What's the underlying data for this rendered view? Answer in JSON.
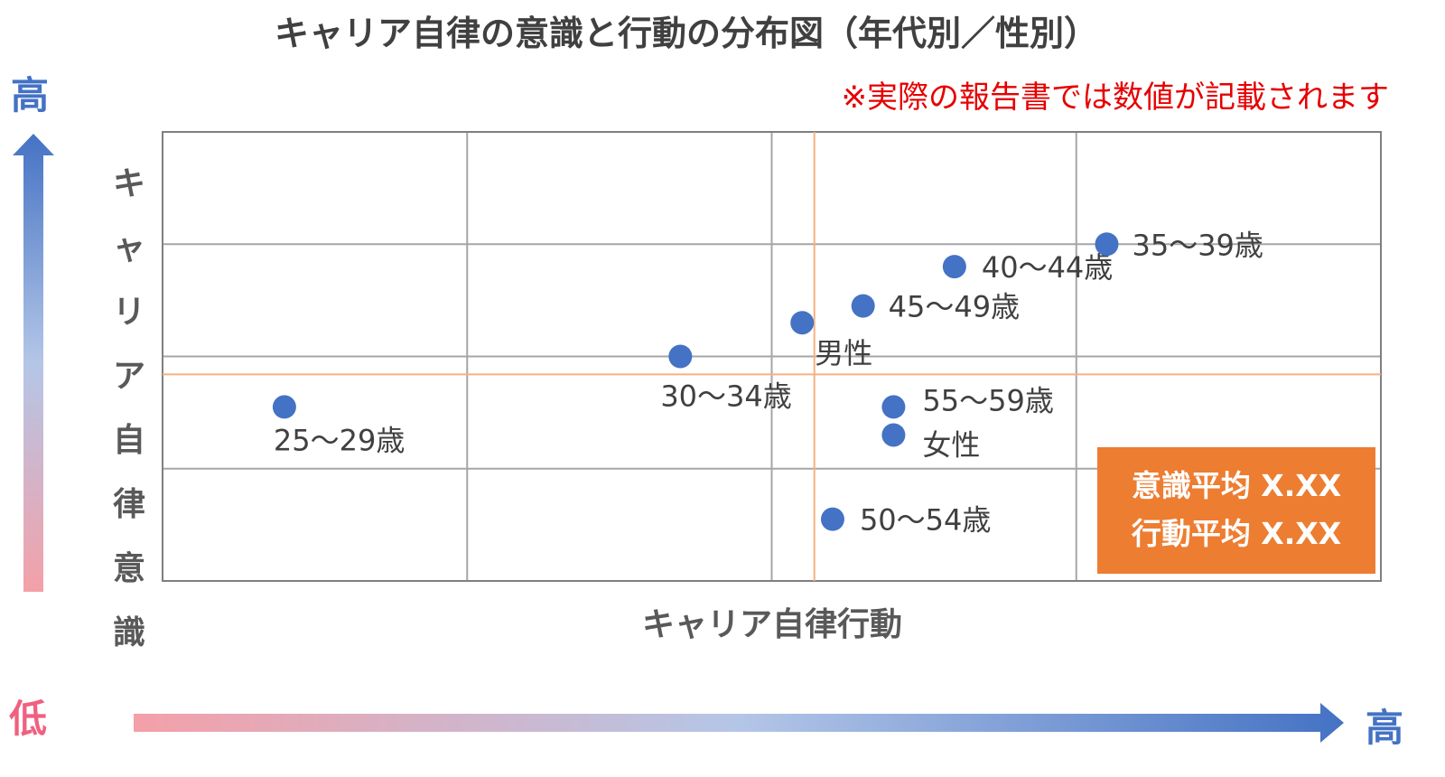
{
  "title": "キャリア自律の意識と行動の分布図（年代別／性別）",
  "note": "※実際の報告書では数値が記載されます",
  "y_axis_label": "キャリア自律意識",
  "x_axis_label": "キャリア自律行動",
  "scale_words": {
    "high_y": "高",
    "low": "低",
    "high_x": "高"
  },
  "average_box": {
    "awareness": "意識平均 X.XX",
    "action": "行動平均 X.XX"
  },
  "colors": {
    "point": "#4472c4",
    "average_line": "#f4b183",
    "average_box": "#ed7d31",
    "note": "#e60000",
    "arrow_low": "#f4a0a8",
    "arrow_high": "#4472c4"
  },
  "chart_data": {
    "type": "scatter",
    "xlim": [
      0,
      4
    ],
    "ylim": [
      0,
      4
    ],
    "grid": true,
    "average": {
      "x": 2.14,
      "y": 1.84
    },
    "points": [
      {
        "label": "25〜29歳",
        "x": 0.4,
        "y": 1.55
      },
      {
        "label": "30〜34歳",
        "x": 1.7,
        "y": 2.0
      },
      {
        "label": "男性",
        "x": 2.1,
        "y": 2.3
      },
      {
        "label": "45〜49歳",
        "x": 2.3,
        "y": 2.45
      },
      {
        "label": "40〜44歳",
        "x": 2.6,
        "y": 2.8
      },
      {
        "label": "35〜39歳",
        "x": 3.1,
        "y": 3.0
      },
      {
        "label": "55〜59歳",
        "x": 2.4,
        "y": 1.55
      },
      {
        "label": "女性",
        "x": 2.4,
        "y": 1.3
      },
      {
        "label": "50〜54歳",
        "x": 2.2,
        "y": 0.55
      }
    ]
  }
}
